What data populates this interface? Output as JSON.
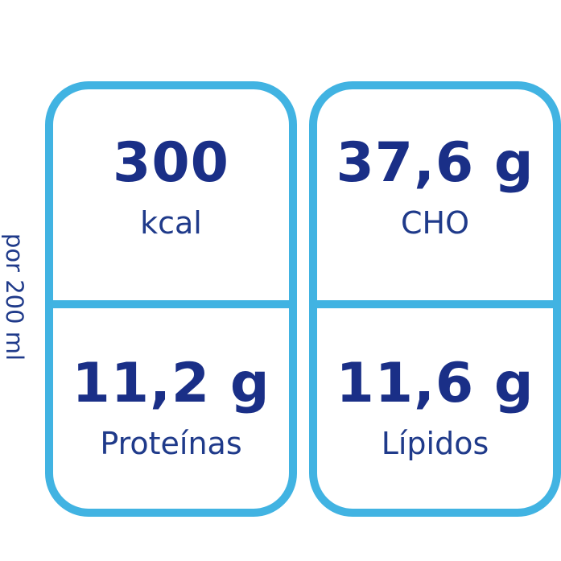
{
  "side_label": "por 200 ml",
  "nutrients": [
    {
      "value": "300",
      "label": "kcal"
    },
    {
      "value": "37,6 g",
      "label": "CHO"
    },
    {
      "value": "11,2 g",
      "label": "Proteínas"
    },
    {
      "value": "11,6 g",
      "label": "Lípidos"
    }
  ],
  "colors": {
    "frame": "#41b3e2",
    "text": "#1a2f87"
  }
}
